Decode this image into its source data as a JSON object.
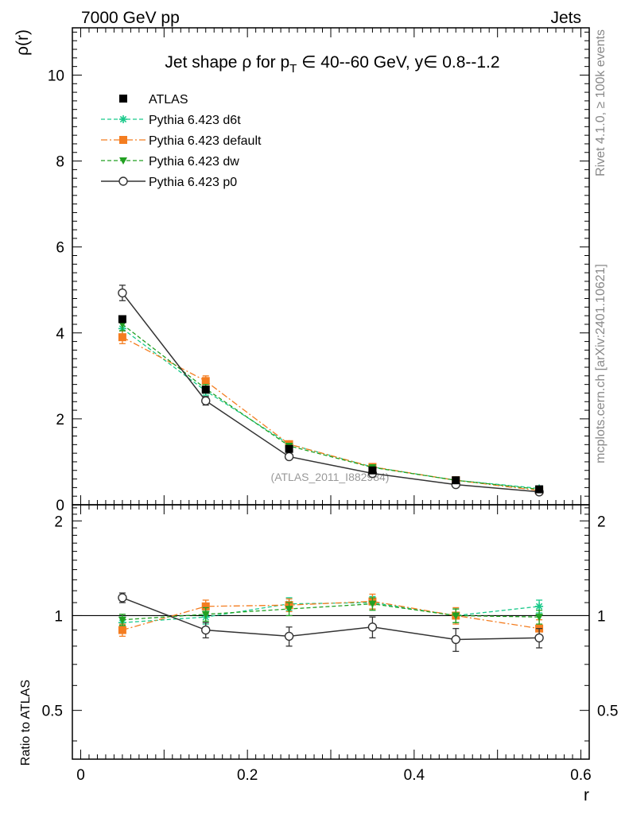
{
  "header": {
    "left": "7000 GeV pp",
    "right": "Jets"
  },
  "side_labels": {
    "rivet": "Rivet 4.1.0, ≥ 100k events",
    "mcplots": "mcplots.cern.ch [arXiv:2401.10621]"
  },
  "watermark": "(ATLAS_2011_I882984)",
  "colors": {
    "atlas": "#000000",
    "d6t": "#19c98a",
    "default": "#f47d20",
    "dw": "#22a022",
    "p0": "#333333"
  },
  "chart_data": [
    {
      "type": "line",
      "panel": "main",
      "title": "Jet shape ρ for p_T ∈ 40--60 GeV, y∈ 0.8--1.2",
      "title_parts": {
        "prefix": "Jet shape ",
        "rho": "ρ",
        "for_p": " for p",
        "sub": "T",
        "suffix": " ∈ 40--60 GeV, y∈ 0.8--1.2"
      },
      "ylabel": "ρ(r)",
      "xlabel": "r",
      "xlim": [
        -0.01,
        0.61
      ],
      "ylim": [
        0,
        11.1
      ],
      "yticks": [
        0,
        2,
        4,
        6,
        8,
        10
      ],
      "ytick_labels": [
        "0",
        "2",
        "4",
        "6",
        "8",
        "10"
      ],
      "x": [
        0.05,
        0.15,
        0.25,
        0.35,
        0.45,
        0.55
      ],
      "series": [
        {
          "key": "atlas",
          "name": "ATLAS",
          "values": [
            4.32,
            2.68,
            1.3,
            0.8,
            0.57,
            0.36
          ],
          "err": [
            0.08,
            0.06,
            0.04,
            0.03,
            0.02,
            0.02
          ]
        },
        {
          "key": "d6t",
          "name": "Pythia 6.423 d6t",
          "values": [
            4.1,
            2.65,
            1.41,
            0.88,
            0.57,
            0.38
          ],
          "err": [
            0.15,
            0.1,
            0.06,
            0.04,
            0.03,
            0.02
          ]
        },
        {
          "key": "default",
          "name": "Pythia 6.423 default",
          "values": [
            3.9,
            2.88,
            1.41,
            0.88,
            0.57,
            0.33
          ],
          "err": [
            0.15,
            0.12,
            0.07,
            0.04,
            0.03,
            0.02
          ]
        },
        {
          "key": "dw",
          "name": "Pythia 6.423 dw",
          "values": [
            4.2,
            2.7,
            1.37,
            0.87,
            0.57,
            0.36
          ],
          "err": [
            0.15,
            0.1,
            0.06,
            0.04,
            0.03,
            0.02
          ]
        },
        {
          "key": "p0",
          "name": "Pythia 6.423 p0",
          "values": [
            4.93,
            2.42,
            1.12,
            0.73,
            0.47,
            0.3
          ],
          "err": [
            0.18,
            0.1,
            0.06,
            0.04,
            0.03,
            0.02
          ]
        }
      ]
    },
    {
      "type": "line",
      "panel": "ratio",
      "ylabel": "Ratio to ATLAS",
      "xlabel": "r",
      "xlim": [
        -0.01,
        0.61
      ],
      "ylim": [
        0.35,
        2.25
      ],
      "yticks": [
        0.5,
        1,
        2
      ],
      "ytick_labels": [
        "0.5",
        "1",
        "2"
      ],
      "xticks": [
        0,
        0.2,
        0.4,
        0.6
      ],
      "xtick_labels": [
        "0",
        "0.2",
        "0.4",
        "0.6"
      ],
      "x": [
        0.05,
        0.15,
        0.25,
        0.35,
        0.45,
        0.55
      ],
      "series": [
        {
          "key": "d6t",
          "name": "Pythia 6.423 d6t",
          "values": [
            0.95,
            0.99,
            1.09,
            1.1,
            1.0,
            1.07
          ],
          "err": [
            0.04,
            0.05,
            0.05,
            0.05,
            0.05,
            0.05
          ]
        },
        {
          "key": "default",
          "name": "Pythia 6.423 default",
          "values": [
            0.9,
            1.07,
            1.08,
            1.11,
            1.0,
            0.91
          ],
          "err": [
            0.04,
            0.05,
            0.05,
            0.06,
            0.06,
            0.06
          ]
        },
        {
          "key": "dw",
          "name": "Pythia 6.423 dw",
          "values": [
            0.97,
            1.01,
            1.05,
            1.09,
            1.0,
            0.99
          ],
          "err": [
            0.04,
            0.05,
            0.05,
            0.05,
            0.05,
            0.05
          ]
        },
        {
          "key": "p0",
          "name": "Pythia 6.423 p0",
          "values": [
            1.14,
            0.9,
            0.86,
            0.92,
            0.84,
            0.85
          ],
          "err": [
            0.04,
            0.05,
            0.06,
            0.07,
            0.07,
            0.06
          ]
        }
      ]
    }
  ]
}
